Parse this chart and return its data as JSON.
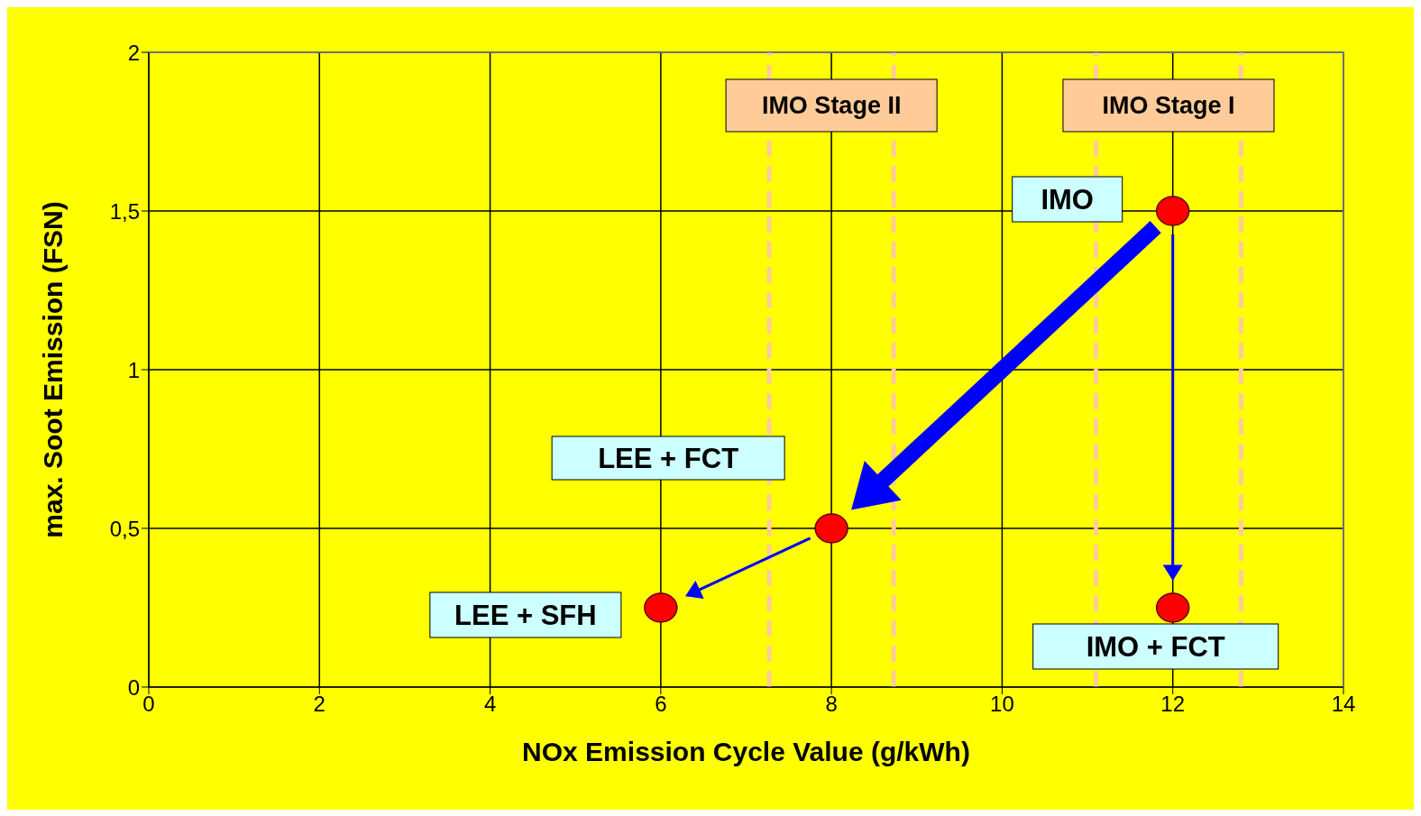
{
  "chart_data": {
    "type": "scatter",
    "xlabel": "NOx Emission Cycle Value (g/kWh)",
    "ylabel": "max. Soot Emission (FSN)",
    "x": [
      12,
      8,
      6,
      12
    ],
    "series": [
      {
        "color": "#ff0000",
        "values": [
          1.5,
          0.5,
          0.25,
          0.25
        ]
      }
    ],
    "xlim": [
      0,
      14
    ],
    "xticks": [
      0,
      2,
      4,
      6,
      8,
      10,
      12,
      14
    ],
    "ylim": [
      0,
      2
    ],
    "yticks": [
      0,
      {
        "value": 0.5,
        "label": "0,5"
      },
      1,
      {
        "value": 1.5,
        "label": "1,5"
      },
      2
    ],
    "grid": true,
    "legend": false,
    "marker": "circle",
    "ref_lines": [
      {
        "axis": "x",
        "value": 7.27,
        "color": "#ffcc99",
        "line_style": "dashed"
      },
      {
        "axis": "x",
        "value": 8.73,
        "color": "#ffcc99",
        "line_style": "dashed"
      },
      {
        "axis": "x",
        "value": 11.1,
        "color": "#ffcc99",
        "line_style": "dashed"
      },
      {
        "axis": "x",
        "value": 12.8,
        "color": "#ffcc99",
        "line_style": "dashed"
      }
    ],
    "annotations": [
      "IMO Stage II",
      "IMO Stage I",
      "IMO",
      "LEE + FCT",
      "LEE + SFH",
      "IMO + FCT"
    ]
  }
}
